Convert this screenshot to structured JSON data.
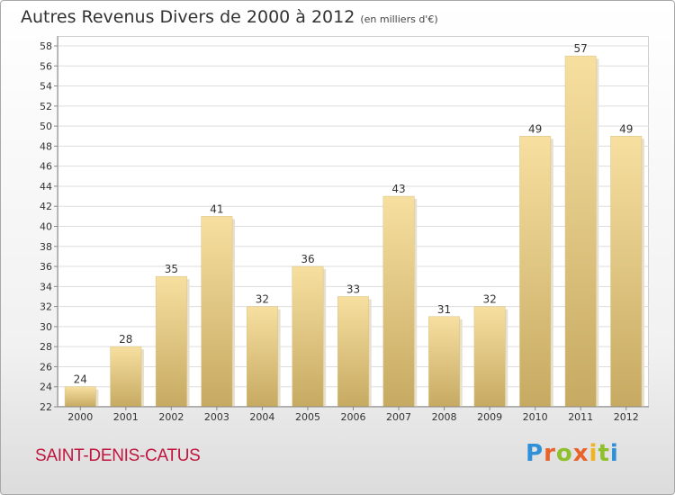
{
  "header": {
    "title": "Autres Revenus Divers de 2000 à 2012",
    "subtitle": "(en milliers d'€)"
  },
  "footer": {
    "commune": "SAINT-DENIS-CATUS",
    "logo_text": "Proxiti"
  },
  "chart_data": {
    "type": "bar",
    "categories": [
      "2000",
      "2001",
      "2002",
      "2003",
      "2004",
      "2005",
      "2006",
      "2007",
      "2008",
      "2009",
      "2010",
      "2011",
      "2012"
    ],
    "values": [
      24,
      28,
      35,
      41,
      32,
      36,
      33,
      43,
      31,
      32,
      49,
      57,
      49
    ],
    "title": "Autres Revenus Divers de 2000 à 2012",
    "subtitle": "(en milliers d'€)",
    "ylim": [
      22,
      58
    ],
    "yticks": [
      22,
      24,
      26,
      28,
      30,
      32,
      34,
      36,
      38,
      40,
      42,
      44,
      46,
      48,
      50,
      52,
      54,
      56,
      58
    ],
    "grid": true,
    "bar_color_top": "#f7dfa0",
    "bar_color_bottom": "#c6aa62",
    "grid_color": "#dddddd"
  }
}
